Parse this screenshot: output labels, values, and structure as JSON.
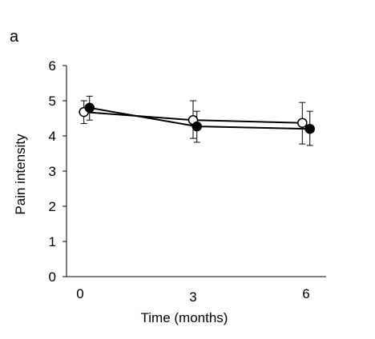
{
  "panel_label": "a",
  "chart_data": {
    "type": "line",
    "title": "",
    "xlabel": "Time  (months)",
    "ylabel": "Pain intensity",
    "ylim": [
      0,
      6
    ],
    "yticks": [
      0,
      1,
      2,
      3,
      4,
      5,
      6
    ],
    "xticks": [
      0,
      3,
      6
    ],
    "grid": false,
    "legend": "none",
    "series": [
      {
        "marker": "filled-circle",
        "color": "#000000",
        "x": [
          0.25,
          3.1,
          6.1
        ],
        "y": [
          4.8,
          4.27,
          4.2
        ],
        "err_low": [
          0.35,
          0.45,
          0.47
        ],
        "err_high": [
          0.33,
          0.43,
          0.5
        ]
      },
      {
        "marker": "open-circle",
        "color": "#000000",
        "x": [
          0.1,
          3.0,
          5.9
        ],
        "y": [
          4.68,
          4.45,
          4.37
        ],
        "err_low": [
          0.33,
          0.52,
          0.6
        ],
        "err_high": [
          0.32,
          0.55,
          0.58
        ]
      }
    ]
  }
}
